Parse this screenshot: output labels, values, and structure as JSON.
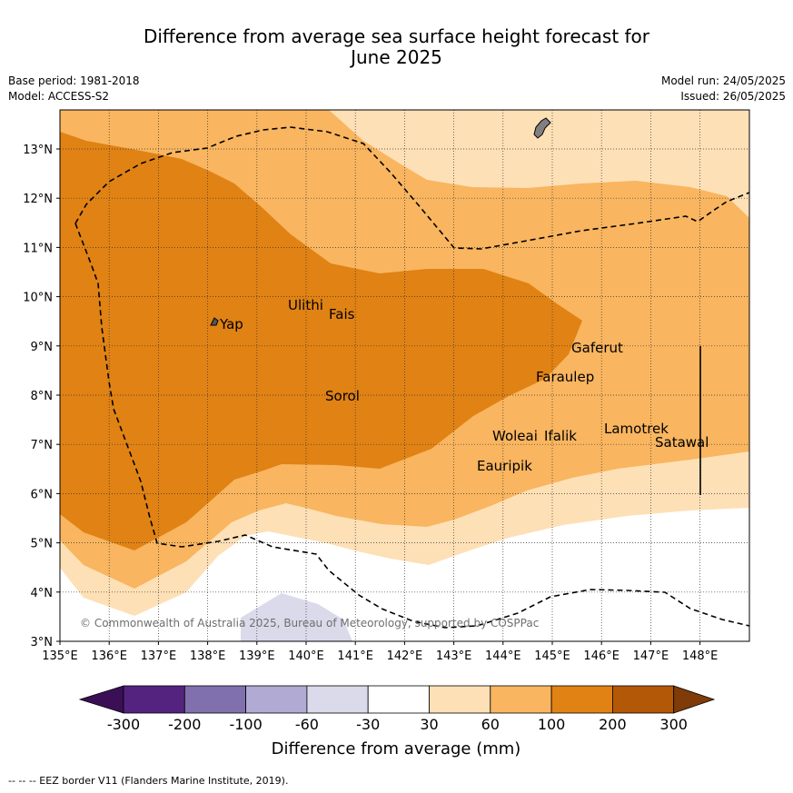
{
  "title": {
    "line1": "Difference from average sea surface height forecast for",
    "line2": "June 2025"
  },
  "meta": {
    "base_period": "Base period: 1981-2018",
    "model": "Model: ACCESS-S2",
    "model_run": "Model run: 24/05/2025",
    "issued": "Issued: 26/05/2025"
  },
  "map": {
    "lon_labels": [
      "135°E",
      "136°E",
      "137°E",
      "138°E",
      "139°E",
      "140°E",
      "141°E",
      "142°E",
      "143°E",
      "144°E",
      "145°E",
      "146°E",
      "147°E",
      "148°E"
    ],
    "lat_labels": [
      "3°N",
      "4°N",
      "5°N",
      "6°N",
      "7°N",
      "8°N",
      "9°N",
      "10°N",
      "11°N",
      "12°N",
      "13°N"
    ],
    "places": [
      "Yap",
      "Ulithi",
      "Fais",
      "Gaferut",
      "Faraulep",
      "Sorol",
      "Lamotrek",
      "Woleai",
      "Ifalik",
      "Satawal",
      "Eauripik"
    ],
    "credit": "© Commonwealth of Australia 2025, Bureau of Meteorology, supported by COSPPac"
  },
  "colorbar": {
    "labels": [
      "-300",
      "-200",
      "-100",
      "-60",
      "-30",
      "30",
      "60",
      "100",
      "200",
      "300"
    ],
    "colors": [
      "#3b0f55",
      "#54237f",
      "#8070ae",
      "#b1aad2",
      "#dadaeb",
      "#ffffff",
      "#fee0b6",
      "#f9b55f",
      "#e08214",
      "#b35806",
      "#7f3b08"
    ],
    "title": "Difference from average (mm)"
  },
  "footer": "--  --  -- EEZ border V11 (Flanders Marine Institute, 2019)."
}
